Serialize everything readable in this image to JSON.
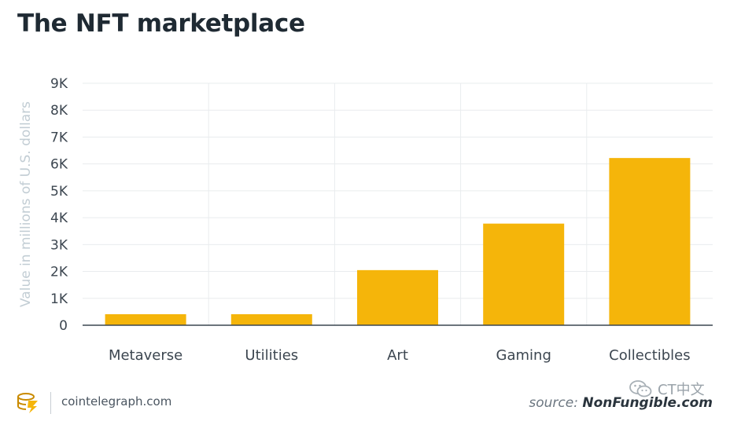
{
  "header": {
    "title": "The NFT marketplace"
  },
  "chart_data": {
    "type": "bar",
    "categories": [
      "Metaverse",
      "Utilities",
      "Art",
      "Gaming",
      "Collectibles"
    ],
    "values": [
      410,
      410,
      2050,
      3780,
      6220
    ],
    "xlabel": "",
    "ylabel": "Value in millions of U.S. dollars",
    "ylim": [
      0,
      9000
    ],
    "yticks": [
      0,
      1000,
      2000,
      3000,
      4000,
      5000,
      6000,
      7000,
      8000,
      9000
    ],
    "ytick_labels": [
      "0",
      "1K",
      "2K",
      "3K",
      "4K",
      "5K",
      "6K",
      "7K",
      "8K",
      "9K"
    ],
    "grid": true,
    "colors": {
      "bar": "#f5b50a",
      "grid": "#e9ecee",
      "axis": "#3c4650",
      "tick_text": "#3c4650",
      "ylabel": "#c2cdd4"
    }
  },
  "footer": {
    "site": "cointelegraph.com",
    "source_prefix": "source:",
    "source_name": "NonFungible.com",
    "watermark": "CT中文"
  },
  "icons": {
    "logo": "cointelegraph-logo-icon",
    "watermark": "wechat-icon"
  }
}
